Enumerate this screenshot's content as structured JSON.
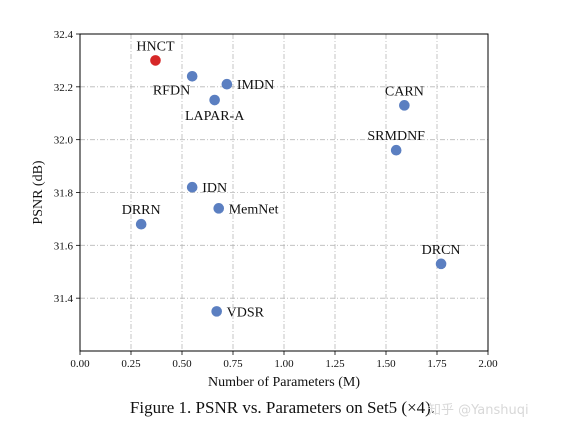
{
  "chart_data": {
    "type": "scatter",
    "xlabel": "Number of Parameters (M)",
    "ylabel": "PSNR (dB)",
    "xlim": [
      0.0,
      2.0
    ],
    "ylim": [
      31.2,
      32.4
    ],
    "xticks": [
      "0.00",
      "0.25",
      "0.50",
      "0.75",
      "1.00",
      "1.25",
      "1.50",
      "1.75",
      "2.00"
    ],
    "yticks": [
      "31.4",
      "31.6",
      "31.8",
      "32.0",
      "32.2",
      "32.4"
    ],
    "grid": true,
    "points": [
      {
        "label": "HNCT",
        "x": 0.37,
        "y": 32.3,
        "color": "#d62728",
        "label_pos": "top"
      },
      {
        "label": "RFDN",
        "x": 0.55,
        "y": 32.24,
        "color": "#5b7fc1",
        "label_pos": "below-left"
      },
      {
        "label": "IMDN",
        "x": 0.72,
        "y": 32.21,
        "color": "#5b7fc1",
        "label_pos": "right"
      },
      {
        "label": "LAPAR-A",
        "x": 0.66,
        "y": 32.15,
        "color": "#5b7fc1",
        "label_pos": "below"
      },
      {
        "label": "CARN",
        "x": 1.59,
        "y": 32.13,
        "color": "#5b7fc1",
        "label_pos": "top"
      },
      {
        "label": "SRMDNF",
        "x": 1.55,
        "y": 31.96,
        "color": "#5b7fc1",
        "label_pos": "top"
      },
      {
        "label": "IDN",
        "x": 0.55,
        "y": 31.82,
        "color": "#5b7fc1",
        "label_pos": "right"
      },
      {
        "label": "MemNet",
        "x": 0.68,
        "y": 31.74,
        "color": "#5b7fc1",
        "label_pos": "right"
      },
      {
        "label": "DRRN",
        "x": 0.3,
        "y": 31.68,
        "color": "#5b7fc1",
        "label_pos": "top"
      },
      {
        "label": "DRCN",
        "x": 1.77,
        "y": 31.53,
        "color": "#5b7fc1",
        "label_pos": "top"
      },
      {
        "label": "VDSR",
        "x": 0.67,
        "y": 31.35,
        "color": "#5b7fc1",
        "label_pos": "right"
      }
    ]
  },
  "caption": "Figure 1. PSNR vs. Parameters on Set5 (×4).",
  "watermark": "知乎 @Yanshuqi"
}
